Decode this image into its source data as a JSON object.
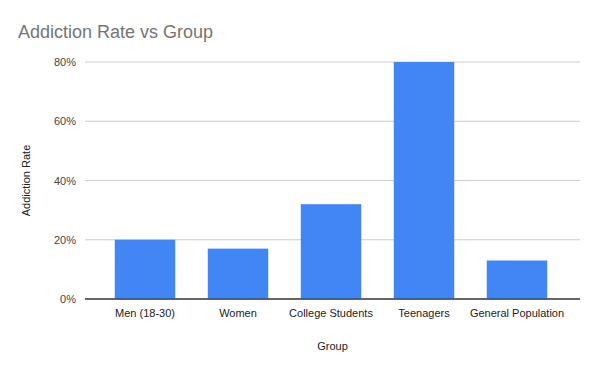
{
  "chart_data": {
    "type": "bar",
    "title": "Addiction Rate vs Group",
    "x_label": "Group",
    "y_label": "Addiction Rate",
    "categories": [
      "Men (18-30)",
      "Women",
      "College Students",
      "Teenagers",
      "General Population"
    ],
    "values": [
      20,
      17,
      32,
      80,
      13
    ],
    "color": "#4285f4",
    "ylim": [
      0,
      80
    ],
    "yticks": [
      {
        "value": 0,
        "label": "0%"
      },
      {
        "value": 20,
        "label": "20%"
      },
      {
        "value": 40,
        "label": "40%"
      },
      {
        "value": 60,
        "label": "60%"
      },
      {
        "value": 80,
        "label": "80%"
      }
    ],
    "grid": true
  }
}
